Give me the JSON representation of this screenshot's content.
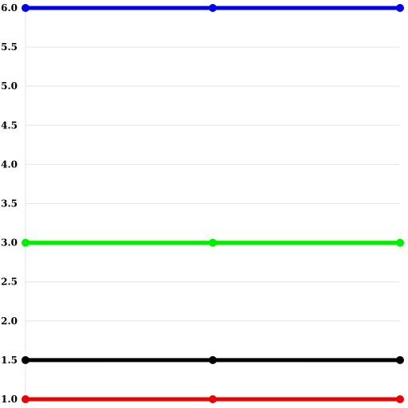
{
  "chart_data": {
    "type": "line",
    "title": "",
    "xlabel": "",
    "ylabel": "",
    "x": [
      1,
      2,
      3
    ],
    "ylim": [
      1.0,
      6.0
    ],
    "y_ticks": [
      "1.0",
      "1.5",
      "2.0",
      "2.5",
      "3.0",
      "3.5",
      "4.0",
      "4.5",
      "5.0",
      "5.5",
      "6.0"
    ],
    "grid": "horizontal",
    "legend": "none",
    "series": [
      {
        "values": [
          6.0,
          6.0,
          6.0
        ],
        "color": "#0000ee"
      },
      {
        "values": [
          3.0,
          3.0,
          3.0
        ],
        "color": "#00ee00"
      },
      {
        "values": [
          1.5,
          1.5,
          1.5
        ],
        "color": "#000000"
      },
      {
        "values": [
          1.0,
          1.0,
          1.0
        ],
        "color": "#ee0000"
      }
    ]
  }
}
